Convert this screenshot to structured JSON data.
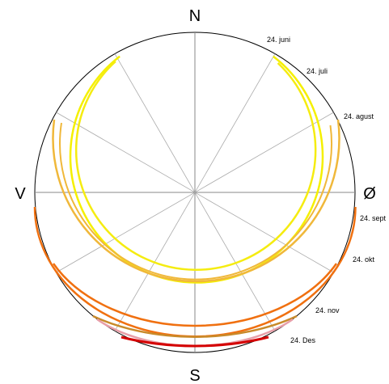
{
  "compass": {
    "north": "N",
    "south": "S",
    "west": "V",
    "east": "Ø"
  },
  "sun_paths": [
    {
      "label": "24. juni",
      "color": "#f5f000"
    },
    {
      "label": "24. juli",
      "color": "#f5ec10"
    },
    {
      "label": "24. agust",
      "color": "#f0b83a"
    },
    {
      "label": "24. sept",
      "color": "#f07010"
    },
    {
      "label": "24. okt",
      "color": "#f07010"
    },
    {
      "label": "24. nov",
      "color": "#c88a2a"
    },
    {
      "label": "24. Des",
      "color": "#d40000"
    }
  ],
  "extra_arcs": [
    {
      "color": "#e89ea8"
    }
  ]
}
